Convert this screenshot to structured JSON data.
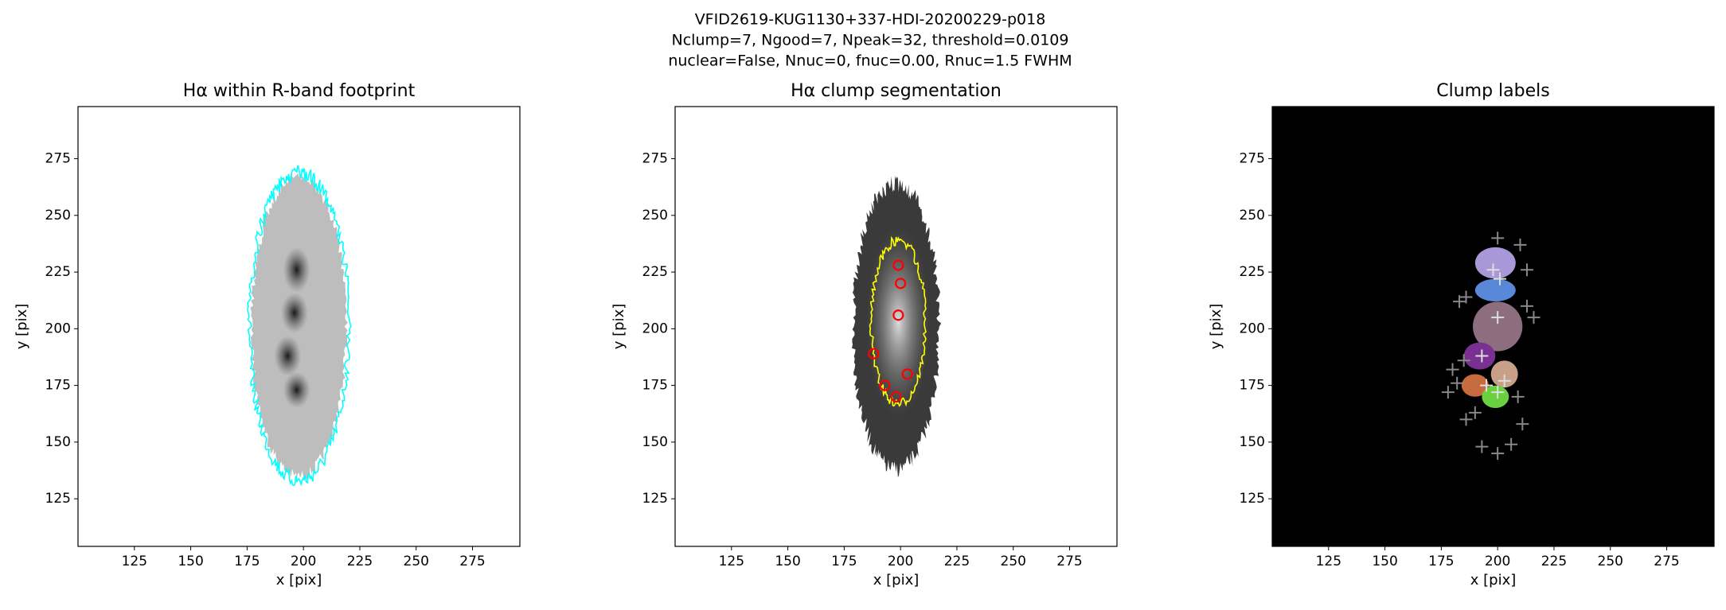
{
  "suptitle": [
    "VFID2619-KUG1130+337-HDI-20200229-p018",
    "Nclump=7, Ngood=7, Npeak=32, threshold=0.0109",
    "nuclear=False, Nnuc=0, fnuc=0.00, Rnuc=1.5 FWHM"
  ],
  "chart_data": [
    {
      "type": "image",
      "title": "Hα within R-band footprint",
      "xlabel": "x [pix]",
      "ylabel": "y [pix]",
      "xlim": [
        100,
        296
      ],
      "ylim": [
        104,
        298
      ],
      "xticks": [
        125,
        150,
        175,
        200,
        225,
        250,
        275
      ],
      "yticks": [
        125,
        150,
        175,
        200,
        225,
        250,
        275
      ]
    },
    {
      "type": "image",
      "title": "Hα clump segmentation",
      "xlabel": "x [pix]",
      "ylabel": "y [pix]",
      "xlim": [
        100,
        296
      ],
      "ylim": [
        104,
        298
      ],
      "xticks": [
        125,
        150,
        175,
        200,
        225,
        250,
        275
      ],
      "yticks": [
        125,
        150,
        175,
        200,
        225,
        250,
        275
      ],
      "markers": [
        {
          "marker": "circle",
          "color": "#ff0000",
          "x": [
            199,
            200,
            199,
            188,
            203,
            193,
            198
          ],
          "y": [
            228,
            220,
            206,
            189,
            180,
            175,
            170
          ]
        }
      ]
    },
    {
      "type": "image",
      "title": "Clump labels",
      "xlabel": "x [pix]",
      "ylabel": "y [pix]",
      "xlim": [
        100,
        296
      ],
      "ylim": [
        104,
        298
      ],
      "xticks": [
        125,
        150,
        175,
        200,
        225,
        250,
        275
      ],
      "yticks": [
        125,
        150,
        175,
        200,
        225,
        250,
        275
      ],
      "markers": [
        {
          "marker": "plus",
          "color": "#dddddd",
          "x": [
            198,
            201,
            200,
            193,
            203,
            200,
            195
          ],
          "y": [
            226,
            222,
            205,
            188,
            177,
            172,
            175
          ]
        },
        {
          "marker": "plus",
          "color": "#888888",
          "x": [
            200,
            210,
            213,
            183,
            186,
            213,
            216,
            180,
            185,
            182,
            178,
            186,
            190,
            211,
            193,
            200,
            206,
            209
          ],
          "y": [
            240,
            237,
            226,
            212,
            214,
            210,
            205,
            182,
            186,
            176,
            172,
            160,
            163,
            158,
            148,
            145,
            149,
            170
          ]
        }
      ]
    }
  ]
}
